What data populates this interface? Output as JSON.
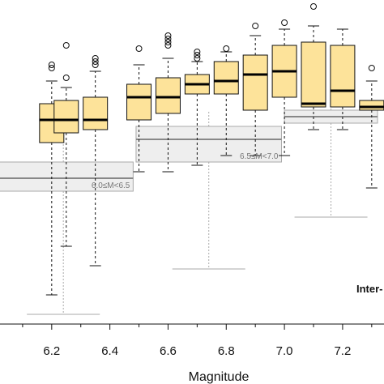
{
  "chart_data": {
    "type": "box",
    "xlabel": "Magnitude",
    "ylabel": "",
    "xlim": [
      6.0,
      7.32
    ],
    "ylim": [
      0.0,
      1.0
    ],
    "x_ticks": [
      "6.2",
      "6.4",
      "6.6",
      "6.8",
      "7.0",
      "7.2"
    ],
    "x_tick_values": [
      6.2,
      6.4,
      6.6,
      6.8,
      7.0,
      7.2
    ],
    "box_fill": "#fde39a",
    "band_fill": "#eeeeee",
    "boxes": [
      {
        "x": 6.2,
        "q1": 0.56,
        "median": 0.63,
        "q3": 0.68,
        "whisker_low": 0.09,
        "whisker_high": 0.75,
        "outliers": [
          0.79,
          0.8
        ]
      },
      {
        "x": 6.25,
        "q1": 0.59,
        "median": 0.63,
        "q3": 0.69,
        "whisker_low": 0.24,
        "whisker_high": 0.73,
        "outliers": [
          0.76,
          0.86
        ]
      },
      {
        "x": 6.35,
        "q1": 0.6,
        "median": 0.63,
        "q3": 0.7,
        "whisker_low": 0.18,
        "whisker_high": 0.78,
        "outliers": [
          0.8,
          0.81,
          0.82
        ]
      },
      {
        "x": 6.5,
        "q1": 0.63,
        "median": 0.7,
        "q3": 0.74,
        "whisker_low": 0.47,
        "whisker_high": 0.8,
        "outliers": [
          0.85
        ]
      },
      {
        "x": 6.6,
        "q1": 0.65,
        "median": 0.7,
        "q3": 0.76,
        "whisker_low": 0.47,
        "whisker_high": 0.82,
        "outliers": [
          0.86,
          0.87,
          0.88,
          0.89
        ]
      },
      {
        "x": 6.7,
        "q1": 0.71,
        "median": 0.74,
        "q3": 0.77,
        "whisker_low": 0.49,
        "whisker_high": 0.81,
        "outliers": [
          0.82,
          0.83,
          0.84
        ]
      },
      {
        "x": 6.8,
        "q1": 0.71,
        "median": 0.75,
        "q3": 0.81,
        "whisker_low": 0.52,
        "whisker_high": 0.84,
        "outliers": [
          0.85
        ]
      },
      {
        "x": 6.9,
        "q1": 0.66,
        "median": 0.77,
        "q3": 0.83,
        "whisker_low": 0.52,
        "whisker_high": 0.89,
        "outliers": [
          0.92
        ]
      },
      {
        "x": 7.0,
        "q1": 0.7,
        "median": 0.78,
        "q3": 0.86,
        "whisker_low": 0.52,
        "whisker_high": 0.91,
        "outliers": [
          0.93
        ]
      },
      {
        "x": 7.1,
        "q1": 0.67,
        "median": 0.68,
        "q3": 0.87,
        "whisker_low": 0.6,
        "whisker_high": 0.92,
        "outliers": [
          0.98
        ]
      },
      {
        "x": 7.2,
        "q1": 0.67,
        "median": 0.72,
        "q3": 0.86,
        "whisker_low": 0.6,
        "whisker_high": 0.91,
        "outliers": []
      },
      {
        "x": 7.3,
        "q1": 0.66,
        "median": 0.67,
        "q3": 0.69,
        "whisker_low": 0.42,
        "whisker_high": 0.75,
        "outliers": [
          0.79
        ]
      }
    ],
    "bands": [
      {
        "label": "6.0≤M<6.5",
        "x_from": 6.0,
        "x_to": 6.48,
        "low": 0.41,
        "median": 0.45,
        "high": 0.5,
        "whisker_low": 0.03,
        "whisker_high": 0.58
      },
      {
        "label": "6.5≤M<7.0",
        "x_from": 6.49,
        "x_to": 6.99,
        "low": 0.5,
        "median": 0.57,
        "high": 0.61,
        "whisker_low": 0.17,
        "whisker_high": 0.66
      },
      {
        "label": "",
        "x_from": 7.0,
        "x_to": 7.32,
        "low": 0.62,
        "median": 0.64,
        "high": 0.66,
        "whisker_low": 0.33,
        "whisker_high": 0.72
      }
    ],
    "annotation": "Inter-"
  }
}
